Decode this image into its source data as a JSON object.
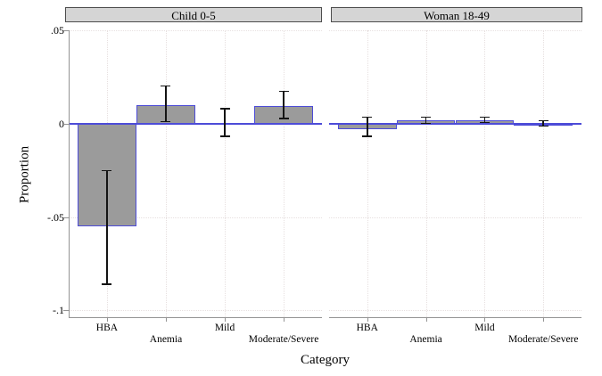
{
  "chart_data": {
    "type": "bar",
    "title": "",
    "xlabel": "Category",
    "ylabel": "Proportion",
    "categories": [
      "HBA",
      "Anemia",
      "Mild",
      "Moderate/Severe"
    ],
    "yticks": [
      {
        "label": ".05",
        "value": 0.05
      },
      {
        "label": "0",
        "value": 0
      },
      {
        "label": "-.05",
        "value": -0.05
      },
      {
        "label": "-.1",
        "value": -0.1
      }
    ],
    "ylim": [
      -0.104,
      0.05
    ],
    "grid": true,
    "legend": false,
    "error_bars": true,
    "panels": [
      {
        "title": "Child 0-5",
        "values": [
          -0.055,
          0.01,
          0.0005,
          0.0095
        ],
        "ci_low": [
          -0.086,
          0.001,
          -0.0067,
          0.0027
        ],
        "ci_high": [
          -0.025,
          0.0205,
          0.0082,
          0.0175
        ]
      },
      {
        "title": "Woman 18-49",
        "values": [
          -0.003,
          0.0017,
          0.0021,
          0.0002
        ],
        "ci_low": [
          -0.0068,
          0.0001,
          0.0005,
          -0.0013
        ],
        "ci_high": [
          0.0038,
          0.0037,
          0.0038,
          0.0019
        ]
      }
    ],
    "colors": {
      "bar_fill": "#9b9b9b",
      "bar_border": "#4d4cd8",
      "zero_line": "#4d4cd8",
      "grid": "#e7e0e0",
      "axis": "#949494",
      "error_bar": "#141414",
      "header_fill": "#d5d5d5",
      "header_border": "#4d4d4d"
    }
  }
}
